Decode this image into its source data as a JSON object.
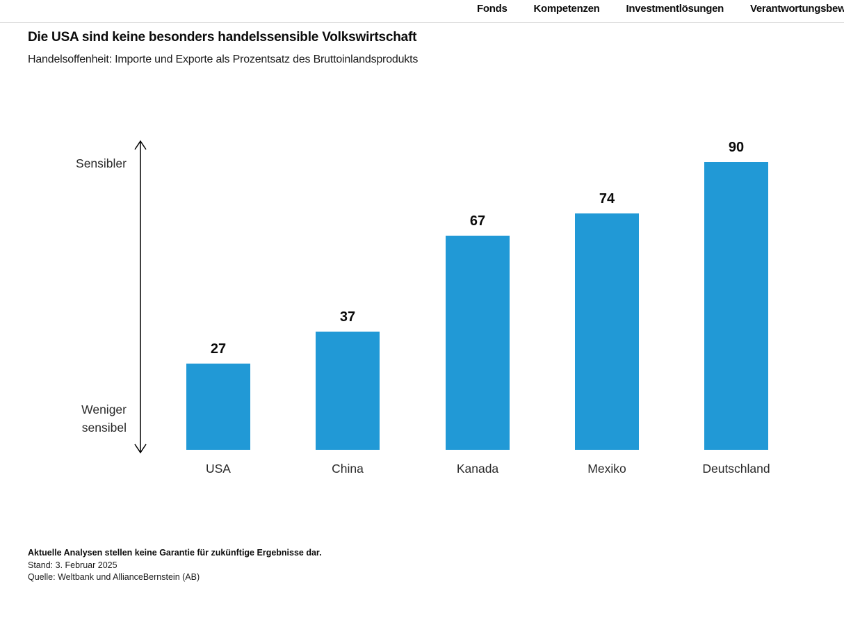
{
  "nav": {
    "items": [
      {
        "label": "Fonds"
      },
      {
        "label": "Kompetenzen"
      },
      {
        "label": "Investmentlösungen"
      },
      {
        "label": "Verantwortungsbew"
      }
    ]
  },
  "header": {
    "title": "Die USA sind keine besonders handelssensible Volkswirtschaft",
    "subtitle": "Handelsoffenheit: Importe und Exporte als Prozentsatz des Bruttoinlandsprodukts"
  },
  "chart_data": {
    "type": "bar",
    "categories": [
      "USA",
      "China",
      "Kanada",
      "Mexiko",
      "Deutschland"
    ],
    "values": [
      27,
      37,
      67,
      74,
      90
    ],
    "title": "Die USA sind keine besonders handelssensible Volkswirtschaft",
    "subtitle": "Handelsoffenheit: Importe und Exporte als Prozentsatz des Bruttoinlandsprodukts",
    "xlabel": "",
    "ylabel": "",
    "ylim": [
      0,
      95
    ],
    "axis_label_top": "Sensibler",
    "axis_label_bottom": "Weniger sensibel",
    "bar_color": "#2199d6",
    "value_labels": true,
    "grid": false,
    "legend": "none"
  },
  "footer": {
    "disclaimer": "Aktuelle Analysen stellen keine Garantie für zukünftige Ergebnisse dar.",
    "date": "Stand: 3. Februar 2025",
    "source": "Quelle: Weltbank und AllianceBernstein (AB)"
  }
}
